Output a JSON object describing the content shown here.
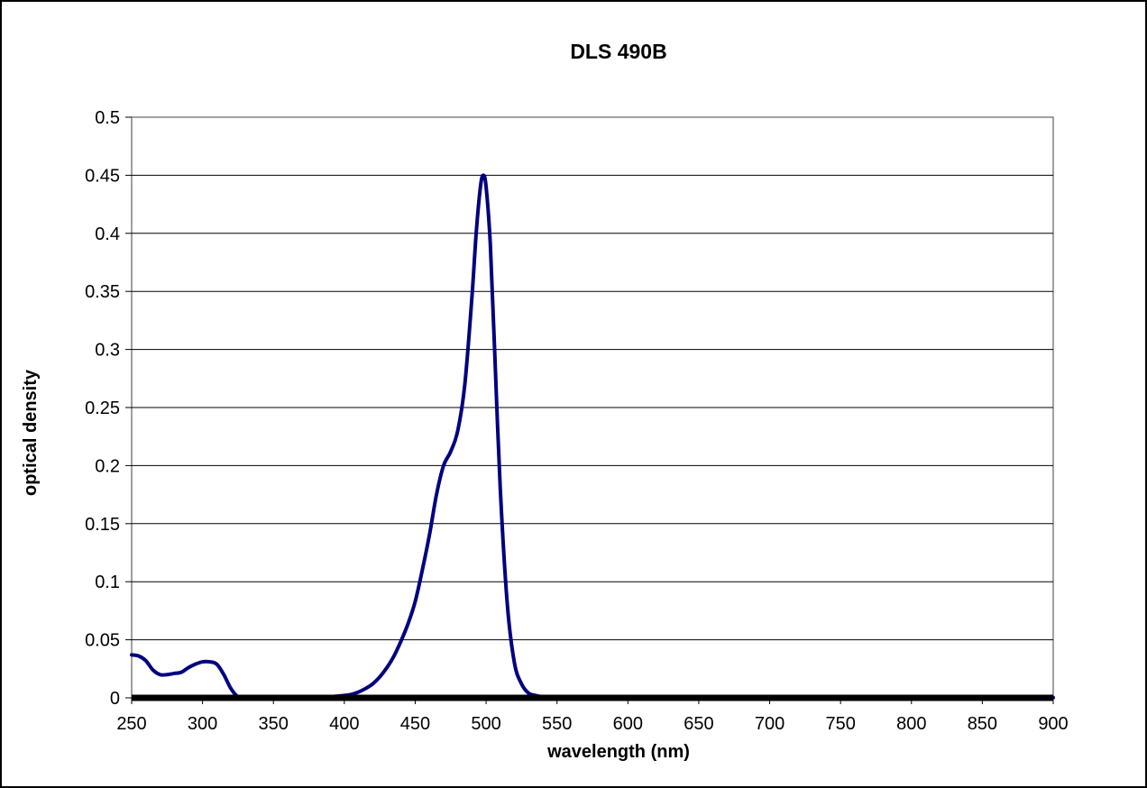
{
  "chart_data": {
    "type": "line",
    "title": "DLS 490B",
    "xlabel": "wavelength (nm)",
    "ylabel": "optical density",
    "xlim": [
      250,
      900
    ],
    "ylim": [
      0,
      0.5
    ],
    "x_ticks": [
      250,
      300,
      350,
      400,
      450,
      500,
      550,
      600,
      650,
      700,
      750,
      800,
      850,
      900
    ],
    "x_tick_labels": [
      "250",
      "300",
      "350",
      "400",
      "450",
      "500",
      "550",
      "600",
      "650",
      "700",
      "750",
      "800",
      "850",
      "900"
    ],
    "y_ticks": [
      0,
      0.05,
      0.1,
      0.15,
      0.2,
      0.25,
      0.3,
      0.35,
      0.4,
      0.45,
      0.5
    ],
    "y_tick_labels": [
      "0",
      "0.05",
      "0.1",
      "0.15",
      "0.2",
      "0.25",
      "0.3",
      "0.35",
      "0.4",
      "0.45",
      "0.5"
    ],
    "grid": "horizontal",
    "legend": "none",
    "series": [
      {
        "color": "#000080",
        "x": [
          250,
          255,
          260,
          265,
          270,
          275,
          280,
          285,
          290,
          295,
          300,
          305,
          310,
          315,
          320,
          325,
          330,
          340,
          350,
          360,
          370,
          380,
          390,
          400,
          405,
          410,
          415,
          420,
          425,
          430,
          435,
          440,
          445,
          450,
          455,
          460,
          465,
          470,
          475,
          480,
          485,
          490,
          493,
          496,
          498,
          500,
          503,
          506,
          510,
          515,
          520,
          525,
          530,
          535,
          540,
          550,
          560,
          580,
          600,
          650,
          700,
          750,
          800,
          850,
          900
        ],
        "y": [
          0.037,
          0.036,
          0.032,
          0.024,
          0.02,
          0.02,
          0.021,
          0.022,
          0.026,
          0.029,
          0.031,
          0.031,
          0.029,
          0.02,
          0.008,
          0.001,
          0.001,
          0.001,
          0.0008,
          0.0006,
          0.0005,
          0.0006,
          0.001,
          0.002,
          0.003,
          0.005,
          0.008,
          0.012,
          0.018,
          0.026,
          0.036,
          0.049,
          0.064,
          0.083,
          0.11,
          0.14,
          0.175,
          0.2,
          0.212,
          0.23,
          0.27,
          0.345,
          0.4,
          0.44,
          0.45,
          0.44,
          0.39,
          0.3,
          0.18,
          0.08,
          0.03,
          0.012,
          0.004,
          0.002,
          0.001,
          0.0008,
          0.0006,
          0.0004,
          0.0003,
          0.0003,
          0.0003,
          0.0002,
          0.0002,
          0.0002,
          0.0002
        ]
      }
    ]
  },
  "style": {
    "line_color": "#000080",
    "grid_color": "#000000",
    "plot_border_color": "#808080",
    "baseline_color": "#000000"
  }
}
